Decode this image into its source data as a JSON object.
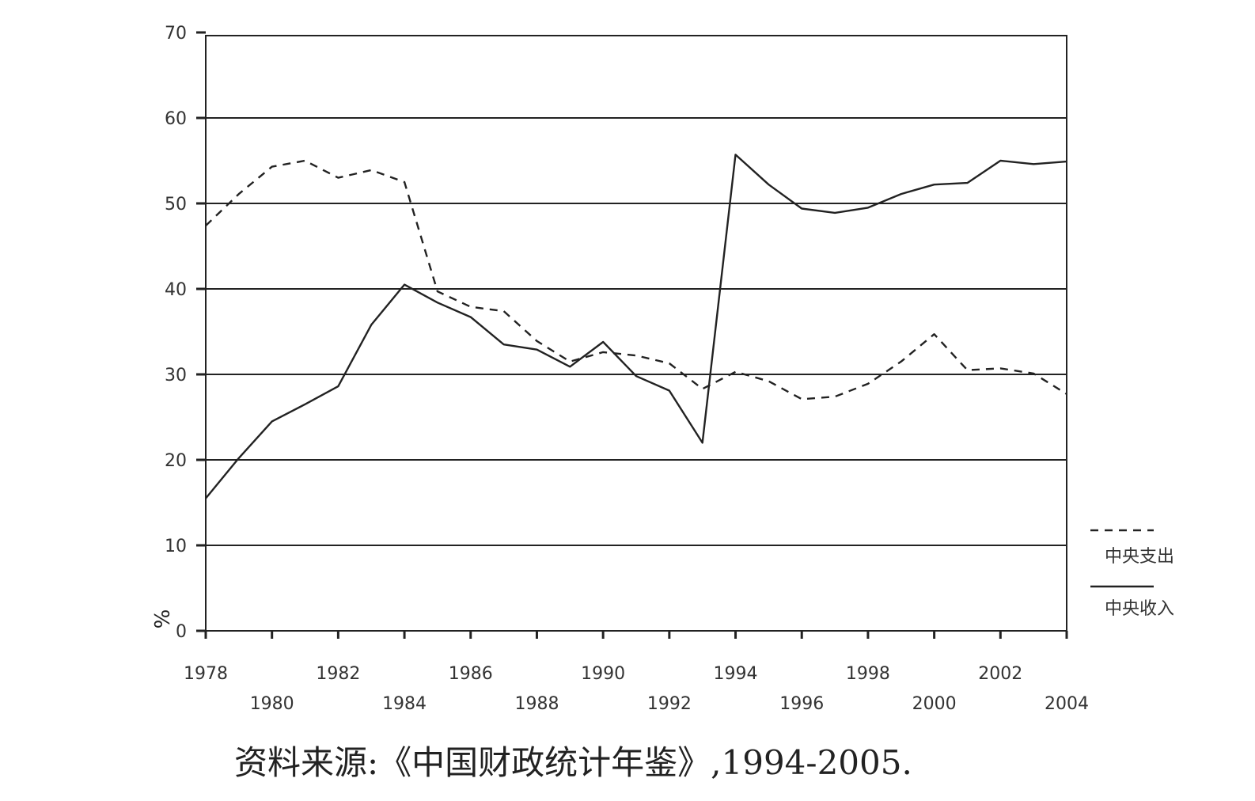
{
  "chart_data": {
    "type": "line",
    "title": "",
    "xlabel": "",
    "ylabel": "%",
    "ylim": [
      0,
      70
    ],
    "xlim": [
      1978,
      2004
    ],
    "yticks": [
      0,
      10,
      20,
      30,
      40,
      50,
      60,
      70
    ],
    "xticks_top_row": [
      "1978",
      "1982",
      "1986",
      "1990",
      "1994",
      "1998",
      "2002"
    ],
    "xticks_bottom_row": [
      "1980",
      "1984",
      "1988",
      "1992",
      "1996",
      "2000",
      "2004"
    ],
    "grid": true,
    "legend_position": "bottom-right, outside plot",
    "x": [
      1978,
      1979,
      1980,
      1981,
      1982,
      1983,
      1984,
      1985,
      1986,
      1987,
      1988,
      1989,
      1990,
      1991,
      1992,
      1993,
      1994,
      1995,
      1996,
      1997,
      1998,
      1999,
      2000,
      2001,
      2002,
      2003,
      2004
    ],
    "series": [
      {
        "name": "中央支出",
        "style": "dashed",
        "color": "#222222",
        "values": [
          47.4,
          51.1,
          54.3,
          55.0,
          53.0,
          53.9,
          52.5,
          39.7,
          37.9,
          37.4,
          33.9,
          31.5,
          32.6,
          32.2,
          31.3,
          28.3,
          30.3,
          29.2,
          27.1,
          27.4,
          28.9,
          31.5,
          34.7,
          30.5,
          30.7,
          30.1,
          27.7
        ]
      },
      {
        "name": "中央收入",
        "style": "solid",
        "color": "#222222",
        "values": [
          15.5,
          20.2,
          24.5,
          26.5,
          28.6,
          35.8,
          40.5,
          38.4,
          36.7,
          33.5,
          32.9,
          30.9,
          33.8,
          29.8,
          28.1,
          22.0,
          55.7,
          52.2,
          49.4,
          48.9,
          49.5,
          51.1,
          52.2,
          52.4,
          55.0,
          54.6,
          54.9
        ]
      }
    ]
  },
  "source_note": "资料来源:《中国财政统计年鉴》,1994-2005."
}
